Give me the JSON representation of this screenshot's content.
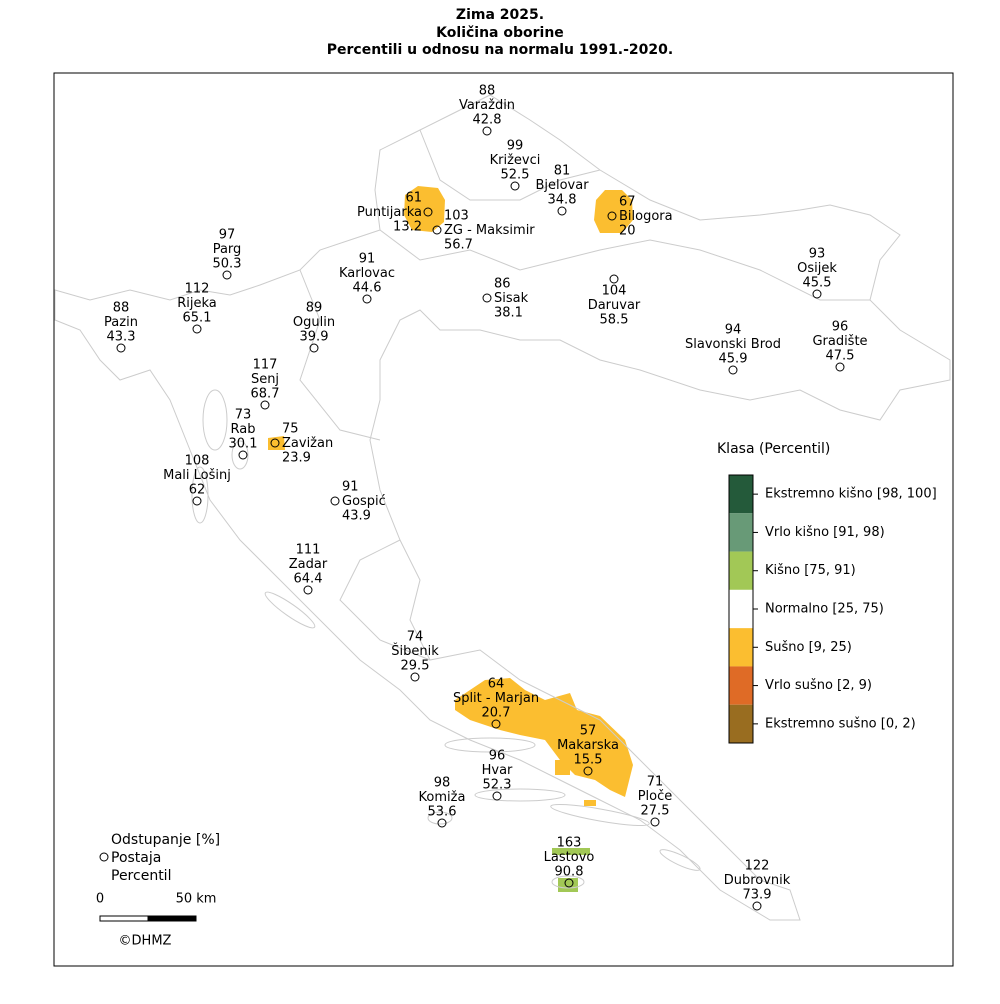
{
  "title": [
    "Zima 2025.",
    "Količina oborine",
    "Percentili u odnosu na normalu 1991.-2020."
  ],
  "stations": [
    {
      "name": "Varaždin",
      "deviation": 88,
      "percentile": 42.8
    },
    {
      "name": "Križevci",
      "deviation": 99,
      "percentile": 52.5
    },
    {
      "name": "Bjelovar",
      "deviation": 81,
      "percentile": 34.8
    },
    {
      "name": "Bilogora",
      "deviation": 67,
      "percentile": 20
    },
    {
      "name": "Puntijarka",
      "deviation": 61,
      "percentile": 13.2
    },
    {
      "name": "ZG - Maksimir",
      "deviation": 103,
      "percentile": 56.7
    },
    {
      "name": "Parg",
      "deviation": 97,
      "percentile": 50.3
    },
    {
      "name": "Karlovac",
      "deviation": 91,
      "percentile": 44.6
    },
    {
      "name": "Sisak",
      "deviation": 86,
      "percentile": 38.1
    },
    {
      "name": "Daruvar",
      "deviation": 104,
      "percentile": 58.5
    },
    {
      "name": "Osijek",
      "deviation": 93,
      "percentile": 45.5
    },
    {
      "name": "Rijeka",
      "deviation": 112,
      "percentile": 65.1
    },
    {
      "name": "Pazin",
      "deviation": 88,
      "percentile": 43.3
    },
    {
      "name": "Ogulin",
      "deviation": 89,
      "percentile": 39.9
    },
    {
      "name": "Slavonski Brod",
      "deviation": 94,
      "percentile": 45.9
    },
    {
      "name": "Gradište",
      "deviation": 96,
      "percentile": 47.5
    },
    {
      "name": "Senj",
      "deviation": 117,
      "percentile": 68.7
    },
    {
      "name": "Rab",
      "deviation": 73,
      "percentile": 30.1
    },
    {
      "name": "Zavižan",
      "deviation": 75,
      "percentile": 23.9
    },
    {
      "name": "Mali Lošinj",
      "deviation": 108,
      "percentile": 62
    },
    {
      "name": "Gospić",
      "deviation": 91,
      "percentile": 43.9
    },
    {
      "name": "Zadar",
      "deviation": 111,
      "percentile": 64.4
    },
    {
      "name": "Šibenik",
      "deviation": 74,
      "percentile": 29.5
    },
    {
      "name": "Split - Marjan",
      "deviation": 64,
      "percentile": 20.7
    },
    {
      "name": "Makarska",
      "deviation": 57,
      "percentile": 15.5
    },
    {
      "name": "Hvar",
      "deviation": 96,
      "percentile": 52.3
    },
    {
      "name": "Komiža",
      "deviation": 98,
      "percentile": 53.6
    },
    {
      "name": "Ploče",
      "deviation": 71,
      "percentile": 27.5
    },
    {
      "name": "Lastovo",
      "deviation": 163,
      "percentile": 90.8
    },
    {
      "name": "Dubrovnik",
      "deviation": 122,
      "percentile": 73.9
    }
  ],
  "legend": {
    "title": "Klasa (Percentil)",
    "classes": [
      {
        "label": "Ekstremno kišno [98, 100]",
        "color": "#245a3a"
      },
      {
        "label": "Vrlo kišno [91, 98)",
        "color": "#689a77"
      },
      {
        "label": "Kišno [75, 91)",
        "color": "#a2c856"
      },
      {
        "label": "Normalno [25, 75)",
        "color": "#ffffff"
      },
      {
        "label": "Sušno [9, 25)",
        "color": "#fbbe30"
      },
      {
        "label": "Vrlo sušno [2, 9)",
        "color": "#df6b26"
      },
      {
        "label": "Ekstremno sušno [0, 2)",
        "color": "#996d20"
      }
    ]
  },
  "key": [
    "Odstupanje [%]",
    "Postaja",
    "Percentil"
  ],
  "scale": [
    "0",
    "50 km"
  ],
  "credit": "©DHMZ"
}
